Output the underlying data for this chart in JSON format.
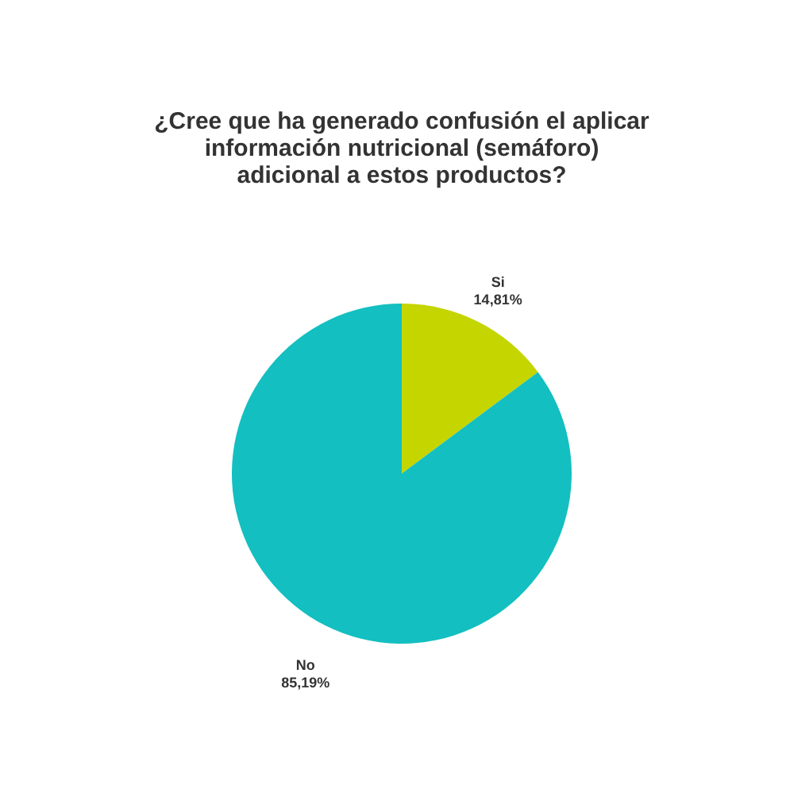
{
  "chart_data": {
    "type": "pie",
    "title": "¿Cree que ha generado confusión el aplicar información nutricional (semáforo) adicional a estos productos?",
    "categories": [
      "Si",
      "No"
    ],
    "values": [
      14.81,
      85.19
    ],
    "value_labels": [
      "14,81%",
      "85,19%"
    ],
    "colors": [
      "#c5d500",
      "#13bfc0"
    ],
    "legend": false
  }
}
